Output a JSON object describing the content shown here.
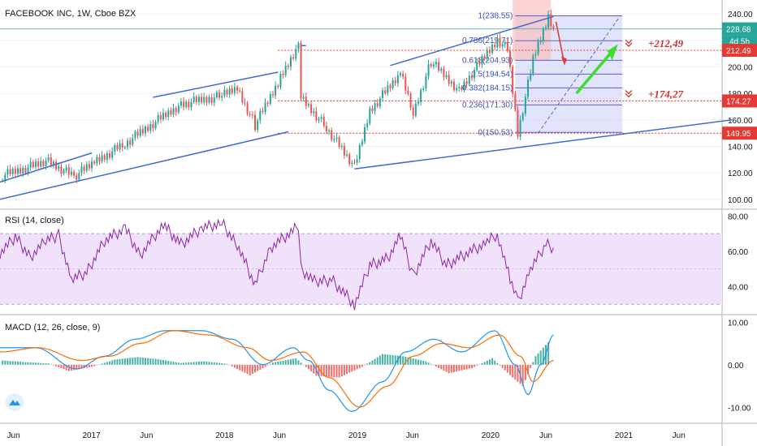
{
  "header": {
    "title": "FACEBOOK INC, 1W, Cboe BZX"
  },
  "rsi_title": "RSI (14, close)",
  "macd_title": "MACD (12, 26, close, 9)",
  "chart_data": [
    {
      "type": "candlestick",
      "title": "FACEBOOK INC, 1W, Cboe BZX",
      "ylim": [
        95,
        248
      ],
      "y_ticks": [
        "100.00",
        "120.00",
        "140.00",
        "160.00",
        "180.00",
        "200.00",
        "220.00",
        "240.00"
      ],
      "x_ticks": [
        "Jun",
        "2017",
        "Jun",
        "2018",
        "Jun",
        "2019",
        "Jun",
        "2020",
        "Jun",
        "2021",
        "Jun"
      ],
      "weekly_closes": [
        {
          "date": "2016-05-02",
          "close": 118
        },
        {
          "date": "2016-09-05",
          "close": 129
        },
        {
          "date": "2016-11-14",
          "close": 117
        },
        {
          "date": "2017-01-09",
          "close": 128
        },
        {
          "date": "2017-04-03",
          "close": 142
        },
        {
          "date": "2017-07-03",
          "close": 160
        },
        {
          "date": "2017-09-04",
          "close": 172
        },
        {
          "date": "2017-12-25",
          "close": 178
        },
        {
          "date": "2018-02-05",
          "close": 184
        },
        {
          "date": "2018-03-26",
          "close": 156
        },
        {
          "date": "2018-06-04",
          "close": 192
        },
        {
          "date": "2018-07-23",
          "close": 217
        },
        {
          "date": "2018-07-30",
          "close": 177
        },
        {
          "date": "2018-10-08",
          "close": 154
        },
        {
          "date": "2018-12-24",
          "close": 124
        },
        {
          "date": "2019-02-04",
          "close": 167
        },
        {
          "date": "2019-04-29",
          "close": 195
        },
        {
          "date": "2019-06-03",
          "close": 165
        },
        {
          "date": "2019-07-22",
          "close": 204
        },
        {
          "date": "2019-10-07",
          "close": 182
        },
        {
          "date": "2020-01-20",
          "close": 221
        },
        {
          "date": "2020-02-17",
          "close": 213
        },
        {
          "date": "2020-03-16",
          "close": 150
        },
        {
          "date": "2020-04-27",
          "close": 205
        },
        {
          "date": "2020-06-08",
          "close": 238
        },
        {
          "date": "2020-06-22",
          "close": 228.68
        }
      ],
      "price_labels": {
        "current": "228.68",
        "countdown": "4d 5h",
        "level_1": "212.49",
        "level_2": "174.27",
        "level_3": "149.95"
      },
      "horizontal_levels": [
        212.49,
        174.27,
        149.95
      ],
      "fibonacci": [
        {
          "label": "1(238.55)",
          "value": 238.55
        },
        {
          "label": "0.786(219.71)",
          "value": 219.71
        },
        {
          "label": "0.618(204.93)",
          "value": 204.93
        },
        {
          "label": "0.5(194.54)",
          "value": 194.54
        },
        {
          "label": "0.382(184.15)",
          "value": 184.15
        },
        {
          "label": "0.236(171.30)",
          "value": 171.3
        },
        {
          "label": "0(150.53)",
          "value": 150.53
        }
      ],
      "annotations": [
        {
          "text": "+212,49",
          "value": 212.49
        },
        {
          "text": "+174,27",
          "value": 174.27
        }
      ],
      "trend_lines": [
        {
          "from": {
            "date": "2016-04-25",
            "y": 113
          },
          "to": {
            "date": "2017-01-02",
            "y": 135
          }
        },
        {
          "from": {
            "date": "2016-04-25",
            "y": 100
          },
          "to": {
            "date": "2018-06-25",
            "y": 151
          }
        },
        {
          "from": {
            "date": "2017-06-19",
            "y": 177
          },
          "to": {
            "date": "2018-05-28",
            "y": 196
          }
        },
        {
          "from": {
            "date": "2018-07-30",
            "y": 216
          },
          "to": {
            "date": "2018-08-13",
            "y": 216
          }
        },
        {
          "from": {
            "date": "2019-04-01",
            "y": 201
          },
          "to": {
            "date": "2020-06-22",
            "y": 238
          }
        },
        {
          "from": {
            "date": "2018-12-24",
            "y": 123
          },
          "to": {
            "date": "2021-10-25",
            "y": 160
          }
        }
      ],
      "colors": {
        "up": "#26a69a",
        "down": "#ef5350",
        "trend": "#3d6bd6",
        "level": "#e53935",
        "fib_box": "#c9cdf7",
        "target_box": "#f9c0c0",
        "arrow_down": "#e53935",
        "arrow_up": "#3ddc2e",
        "annotation": "#d32f2f"
      }
    },
    {
      "type": "line",
      "title": "RSI (14, close)",
      "ylim": [
        26,
        82
      ],
      "y_ticks": [
        "40.00",
        "60.00",
        "80.00"
      ],
      "band": [
        30,
        70
      ],
      "points": [
        {
          "date": "2016-04-25",
          "y": 59
        },
        {
          "date": "2016-06-06",
          "y": 68
        },
        {
          "date": "2016-07-18",
          "y": 57
        },
        {
          "date": "2016-08-29",
          "y": 66
        },
        {
          "date": "2016-10-03",
          "y": 69
        },
        {
          "date": "2016-11-07",
          "y": 44
        },
        {
          "date": "2016-12-19",
          "y": 48
        },
        {
          "date": "2017-02-06",
          "y": 66
        },
        {
          "date": "2017-04-03",
          "y": 73
        },
        {
          "date": "2017-05-15",
          "y": 58
        },
        {
          "date": "2017-07-17",
          "y": 75
        },
        {
          "date": "2017-09-04",
          "y": 64
        },
        {
          "date": "2017-10-30",
          "y": 73
        },
        {
          "date": "2017-12-25",
          "y": 76
        },
        {
          "date": "2018-02-05",
          "y": 64
        },
        {
          "date": "2018-03-26",
          "y": 41
        },
        {
          "date": "2018-05-07",
          "y": 62
        },
        {
          "date": "2018-07-23",
          "y": 74
        },
        {
          "date": "2018-07-30",
          "y": 50
        },
        {
          "date": "2018-09-10",
          "y": 42
        },
        {
          "date": "2018-10-22",
          "y": 44
        },
        {
          "date": "2018-12-24",
          "y": 30
        },
        {
          "date": "2019-02-04",
          "y": 52
        },
        {
          "date": "2019-03-25",
          "y": 56
        },
        {
          "date": "2019-04-29",
          "y": 69
        },
        {
          "date": "2019-06-03",
          "y": 46
        },
        {
          "date": "2019-07-22",
          "y": 66
        },
        {
          "date": "2019-09-02",
          "y": 52
        },
        {
          "date": "2019-10-21",
          "y": 58
        },
        {
          "date": "2019-12-23",
          "y": 65
        },
        {
          "date": "2020-01-20",
          "y": 70
        },
        {
          "date": "2020-02-24",
          "y": 44
        },
        {
          "date": "2020-03-16",
          "y": 31
        },
        {
          "date": "2020-04-20",
          "y": 50
        },
        {
          "date": "2020-06-01",
          "y": 64
        },
        {
          "date": "2020-06-22",
          "y": 62
        }
      ],
      "colors": {
        "line": "#8e24aa",
        "band": "#f1e2fb",
        "band_edge": "#b39ddb"
      }
    },
    {
      "type": "macd",
      "title": "MACD (12, 26, close, 9)",
      "ylim": [
        -13,
        11
      ],
      "y_ticks": [
        "-10.00",
        "0.00",
        "10.00"
      ],
      "macd_line": [
        {
          "date": "2016-04-25",
          "y": 4
        },
        {
          "date": "2016-08-01",
          "y": 4
        },
        {
          "date": "2016-11-21",
          "y": -1
        },
        {
          "date": "2017-02-06",
          "y": 2
        },
        {
          "date": "2017-05-01",
          "y": 6
        },
        {
          "date": "2017-07-24",
          "y": 8
        },
        {
          "date": "2017-10-30",
          "y": 8
        },
        {
          "date": "2018-01-22",
          "y": 6
        },
        {
          "date": "2018-04-16",
          "y": 0
        },
        {
          "date": "2018-07-09",
          "y": 4
        },
        {
          "date": "2018-08-20",
          "y": 1
        },
        {
          "date": "2018-10-15",
          "y": -6
        },
        {
          "date": "2018-12-17",
          "y": -11
        },
        {
          "date": "2019-03-11",
          "y": -4
        },
        {
          "date": "2019-05-13",
          "y": 3
        },
        {
          "date": "2019-07-29",
          "y": 6
        },
        {
          "date": "2019-10-14",
          "y": 3
        },
        {
          "date": "2020-01-13",
          "y": 8
        },
        {
          "date": "2020-03-09",
          "y": 0
        },
        {
          "date": "2020-04-13",
          "y": -7
        },
        {
          "date": "2020-05-18",
          "y": 0
        },
        {
          "date": "2020-06-22",
          "y": 7
        }
      ],
      "signal_line": [
        {
          "date": "2016-04-25",
          "y": 3
        },
        {
          "date": "2016-08-08",
          "y": 4
        },
        {
          "date": "2016-12-05",
          "y": 1
        },
        {
          "date": "2017-02-20",
          "y": 2
        },
        {
          "date": "2017-05-15",
          "y": 5
        },
        {
          "date": "2017-08-14",
          "y": 8
        },
        {
          "date": "2017-11-20",
          "y": 7
        },
        {
          "date": "2018-03-05",
          "y": 4
        },
        {
          "date": "2018-05-07",
          "y": 1
        },
        {
          "date": "2018-08-06",
          "y": 3
        },
        {
          "date": "2018-10-15",
          "y": -3
        },
        {
          "date": "2019-01-07",
          "y": -10
        },
        {
          "date": "2019-03-25",
          "y": -5
        },
        {
          "date": "2019-06-03",
          "y": 2
        },
        {
          "date": "2019-08-19",
          "y": 5
        },
        {
          "date": "2019-11-04",
          "y": 4
        },
        {
          "date": "2020-01-27",
          "y": 7
        },
        {
          "date": "2020-03-23",
          "y": 2
        },
        {
          "date": "2020-04-27",
          "y": -4
        },
        {
          "date": "2020-06-22",
          "y": 1
        }
      ],
      "histogram": [
        {
          "date": "2016-05-02",
          "y": 1
        },
        {
          "date": "2016-07-04",
          "y": 0.6
        },
        {
          "date": "2016-09-05",
          "y": 0.3
        },
        {
          "date": "2016-10-31",
          "y": -1.5
        },
        {
          "date": "2017-01-02",
          "y": -0.5
        },
        {
          "date": "2017-03-06",
          "y": 1.2
        },
        {
          "date": "2017-05-08",
          "y": 1.8
        },
        {
          "date": "2017-07-03",
          "y": 1.3
        },
        {
          "date": "2017-09-04",
          "y": 0.4
        },
        {
          "date": "2017-11-06",
          "y": 0.8
        },
        {
          "date": "2018-01-08",
          "y": 0.2
        },
        {
          "date": "2018-03-12",
          "y": -2.5
        },
        {
          "date": "2018-05-14",
          "y": 0.5
        },
        {
          "date": "2018-07-16",
          "y": 1.5
        },
        {
          "date": "2018-09-10",
          "y": -2.6
        },
        {
          "date": "2018-11-12",
          "y": -3
        },
        {
          "date": "2019-01-14",
          "y": -0.5
        },
        {
          "date": "2019-03-11",
          "y": 2.5
        },
        {
          "date": "2019-05-06",
          "y": 2
        },
        {
          "date": "2019-07-08",
          "y": 0.8
        },
        {
          "date": "2019-09-09",
          "y": -2
        },
        {
          "date": "2019-11-11",
          "y": -0.8
        },
        {
          "date": "2020-01-06",
          "y": 1.5
        },
        {
          "date": "2020-03-02",
          "y": -3
        },
        {
          "date": "2020-03-30",
          "y": -5
        },
        {
          "date": "2020-05-04",
          "y": 2
        },
        {
          "date": "2020-06-15",
          "y": 6
        }
      ],
      "colors": {
        "macd": "#2196f3",
        "signal": "#ff6d00",
        "hist_up": "#26a69a",
        "hist_down": "#ef5350"
      }
    }
  ]
}
